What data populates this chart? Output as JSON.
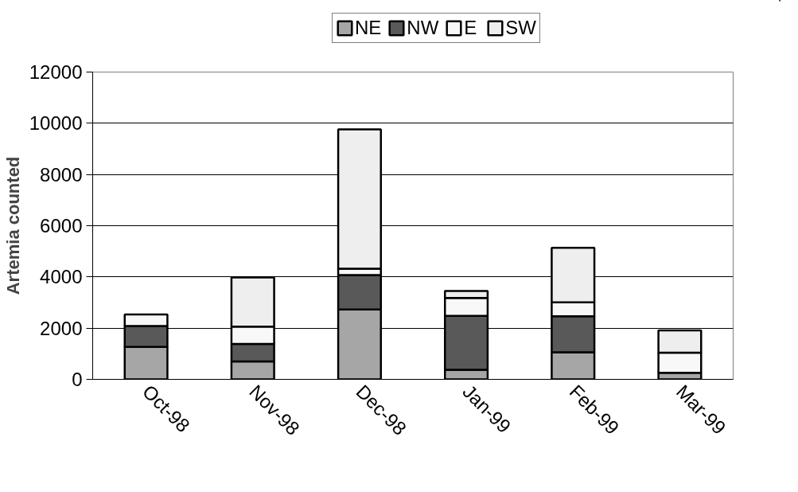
{
  "chart_data": {
    "type": "bar",
    "stacked": true,
    "ylabel": "Artemia counted",
    "categories": [
      "Oct-98",
      "Nov-98",
      "Dec-98",
      "Jan-99",
      "Feb-99",
      "Mar-99"
    ],
    "series": [
      {
        "name": "NE",
        "color": "#a6a6a6",
        "values": [
          1270,
          700,
          2730,
          370,
          1060,
          260
        ]
      },
      {
        "name": "NW",
        "color": "#595959",
        "values": [
          810,
          680,
          1340,
          2110,
          1400,
          0
        ]
      },
      {
        "name": "E",
        "color": "#f8f8f8",
        "values": [
          450,
          680,
          250,
          700,
          550,
          780
        ]
      },
      {
        "name": "SW",
        "color": "#eeeeee",
        "values": [
          0,
          1920,
          5440,
          270,
          2130,
          870
        ]
      }
    ],
    "ylim": [
      0,
      12000
    ],
    "yticks": [
      0,
      2000,
      4000,
      6000,
      8000,
      10000,
      12000
    ],
    "grid": "y",
    "legend": "top"
  }
}
